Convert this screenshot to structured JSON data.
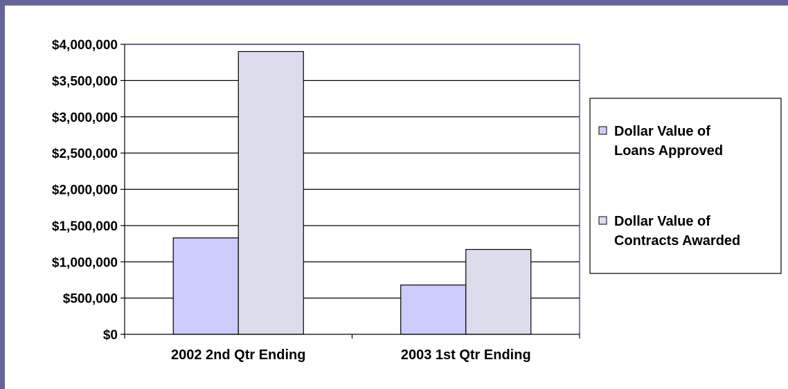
{
  "colors": {
    "frame": "#666699",
    "plot_border": "#2b2b8a",
    "series_1": "#ccccff",
    "series_2": "#dcdcec",
    "bar_outline": "#000000",
    "gridline": "#000000"
  },
  "chart_data": {
    "type": "bar",
    "title": "",
    "xlabel": "",
    "ylabel": "",
    "categories": [
      "2002 2nd Qtr Ending",
      "2003 1st Qtr Ending"
    ],
    "series": [
      {
        "name_lines": [
          "Dollar Value of",
          "Loans Approved"
        ],
        "values": [
          1330000,
          680000
        ],
        "color": "#ccccff"
      },
      {
        "name_lines": [
          "Dollar Value of",
          "Contracts Awarded"
        ],
        "values": [
          3900000,
          1170000
        ],
        "color": "#dcdcec"
      }
    ],
    "ylim": [
      0,
      4000000
    ],
    "yticks": [
      0,
      500000,
      1000000,
      1500000,
      2000000,
      2500000,
      3000000,
      3500000,
      4000000
    ],
    "ytick_labels": [
      "$0",
      "$500,000",
      "$1,000,000",
      "$1,500,000",
      "$2,000,000",
      "$2,500,000",
      "$3,000,000",
      "$3,500,000",
      "$4,000,000"
    ],
    "grid": true,
    "legend_position": "right"
  }
}
